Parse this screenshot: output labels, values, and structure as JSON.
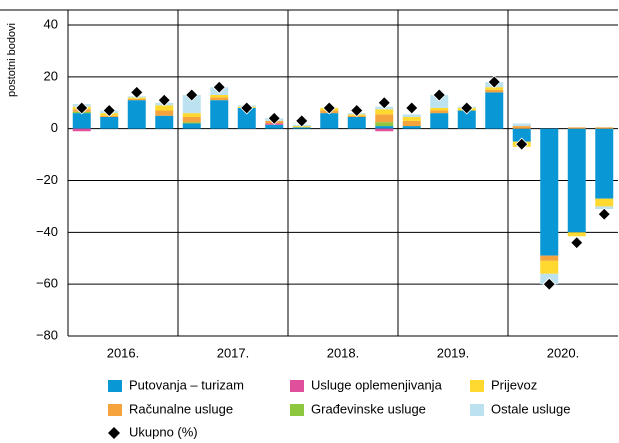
{
  "chart_data": {
    "type": "bar",
    "stacked": true,
    "y_label": "postotni bodovi",
    "categories": [
      null,
      null,
      null,
      null,
      null,
      null,
      null,
      null,
      null,
      null,
      null,
      null,
      null,
      null,
      null,
      null,
      null,
      null,
      null,
      null
    ],
    "groups": [
      "2016.",
      "2017.",
      "2018.",
      "2019.",
      "2020."
    ],
    "ylim": [
      -80,
      40
    ],
    "yticks": [
      {
        "value": -80,
        "label": "−80"
      },
      {
        "value": -60,
        "label": "−60"
      },
      {
        "value": -40,
        "label": "−40"
      },
      {
        "value": -20,
        "label": "−20"
      },
      0,
      20,
      40
    ],
    "grid": true,
    "series": [
      {
        "name": "Putovanja – turizam",
        "color": "#0a97d5",
        "values": [
          6,
          4.5,
          11,
          5,
          2,
          11,
          8,
          1.5,
          0.5,
          6,
          4.5,
          1,
          1,
          6,
          7,
          14,
          -5,
          -49,
          -40,
          -27
        ]
      },
      {
        "name": "Usluge oplemenjivanja",
        "color": "#e04f9b",
        "values": [
          -1,
          0,
          0,
          0,
          0,
          0,
          0,
          0.5,
          0,
          0,
          0,
          -1,
          0,
          0,
          0,
          0,
          0,
          0,
          0,
          0
        ]
      },
      {
        "name": "Građevinske usluge",
        "color": "#8dc63f",
        "values": [
          0.5,
          0,
          0,
          0,
          0.5,
          0,
          0,
          0,
          0,
          0,
          0,
          1.5,
          0,
          0,
          0,
          0,
          0,
          0,
          0,
          0
        ]
      },
      {
        "name": "Računalne usluge",
        "color": "#f5a33c",
        "values": [
          1,
          0.5,
          0.5,
          2,
          2,
          1,
          0,
          1,
          0,
          1,
          0.5,
          3,
          2,
          1,
          0,
          1,
          1,
          -2,
          0.5,
          0.5
        ]
      },
      {
        "name": "Prijevoz",
        "color": "#ffd92f",
        "values": [
          1,
          1,
          0.5,
          2,
          1.5,
          1,
          0.5,
          0,
          0.5,
          1,
          0.5,
          2,
          1.5,
          1,
          1,
          1,
          -2,
          -5,
          -1.5,
          -3
        ]
      },
      {
        "name": "Ostale usluge",
        "color": "#bde2ef",
        "values": [
          1,
          1,
          0.5,
          1,
          7,
          3,
          0.5,
          1,
          0.5,
          0,
          0.5,
          1,
          1,
          5,
          0.5,
          2,
          1,
          -4,
          0,
          -1
        ]
      }
    ],
    "total": {
      "name": "Ukupno (%)",
      "color": "#000000",
      "values": [
        8,
        7,
        14,
        11,
        13,
        16,
        8,
        4,
        3,
        8,
        7,
        10,
        8,
        13,
        8,
        18,
        -6,
        -60,
        -44,
        -33
      ]
    }
  }
}
